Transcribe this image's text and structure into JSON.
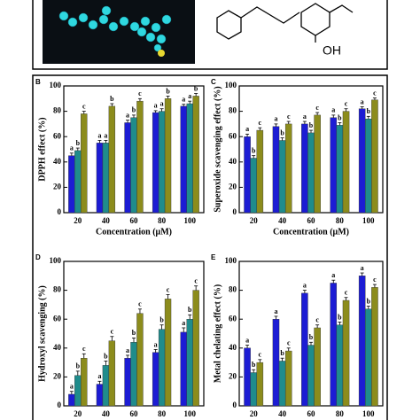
{
  "molecule_label": "OH",
  "chart_data": [
    {
      "type": "bar",
      "panel": "B",
      "y_label": "DPPH effect (%)",
      "x_label": "Concentration (μM)",
      "categories": [
        "20",
        "40",
        "60",
        "80",
        "100"
      ],
      "ylim": [
        0,
        100
      ],
      "yticks": [
        0,
        20,
        40,
        60,
        80,
        100
      ],
      "series": [
        {
          "color": "#1c1cd4",
          "values": [
            45,
            55,
            71,
            79,
            84
          ],
          "errors": [
            2,
            2,
            2,
            1.5,
            1.5
          ],
          "letters": [
            "a",
            "a",
            "a",
            "a",
            "a"
          ]
        },
        {
          "color": "#1f8c8c",
          "values": [
            49,
            55,
            75,
            80,
            86
          ],
          "errors": [
            2,
            2,
            2,
            2,
            2
          ],
          "letters": [
            "b",
            "a",
            "b",
            "a",
            "a"
          ]
        },
        {
          "color": "#8c8c1c",
          "values": [
            78,
            84,
            88,
            90,
            92
          ],
          "errors": [
            2,
            2,
            2,
            2,
            2
          ],
          "letters": [
            "c",
            "b",
            "c",
            "b",
            "b"
          ]
        }
      ]
    },
    {
      "type": "bar",
      "panel": "C",
      "y_label": "Superoxide scavenging effect (%)",
      "x_label": "Concentration (μM)",
      "categories": [
        "20",
        "40",
        "60",
        "80",
        "100"
      ],
      "ylim": [
        0,
        100
      ],
      "yticks": [
        0,
        20,
        40,
        60,
        80,
        100
      ],
      "series": [
        {
          "color": "#1c1cd4",
          "values": [
            60,
            68,
            70,
            75,
            82
          ],
          "errors": [
            2,
            2,
            2,
            2,
            1.5
          ],
          "letters": [
            "a",
            "a",
            "a",
            "a",
            "a"
          ]
        },
        {
          "color": "#1f8c8c",
          "values": [
            43,
            57,
            63,
            69,
            74
          ],
          "errors": [
            2,
            2,
            2,
            2,
            2
          ],
          "letters": [
            "b",
            "b",
            "b",
            "b",
            "b"
          ]
        },
        {
          "color": "#8c8c1c",
          "values": [
            65,
            70,
            77,
            80,
            89
          ],
          "errors": [
            2,
            2,
            2,
            2,
            1.5
          ],
          "letters": [
            "c",
            "c",
            "c",
            "c",
            "c"
          ]
        }
      ]
    },
    {
      "type": "bar",
      "panel": "D",
      "y_label": "Hydroxyl scavenging (%)",
      "categories": [
        "20",
        "40",
        "60",
        "80",
        "100"
      ],
      "ylim": [
        0,
        100
      ],
      "yticks": [
        0,
        20,
        40,
        60,
        80,
        100
      ],
      "series": [
        {
          "color": "#1c1cd4",
          "values": [
            8,
            15,
            33,
            37,
            51
          ],
          "errors": [
            2,
            2,
            2,
            2,
            3
          ],
          "letters": [
            "a",
            "a",
            "a",
            "a",
            "a"
          ]
        },
        {
          "color": "#1f8c8c",
          "values": [
            21,
            28,
            44,
            53,
            60
          ],
          "errors": [
            3,
            3,
            3,
            3,
            3
          ],
          "letters": [
            "b",
            "b",
            "b",
            "b",
            "b"
          ]
        },
        {
          "color": "#8c8c1c",
          "values": [
            33,
            45,
            64,
            74,
            80
          ],
          "errors": [
            3,
            3,
            3,
            3,
            3
          ],
          "letters": [
            "c",
            "c",
            "c",
            "c",
            "c"
          ]
        }
      ]
    },
    {
      "type": "bar",
      "panel": "E",
      "y_label": "Metal chelating effect (%)",
      "categories": [
        "20",
        "40",
        "60",
        "80",
        "100"
      ],
      "ylim": [
        0,
        100
      ],
      "yticks": [
        0,
        20,
        40,
        60,
        80,
        100
      ],
      "series": [
        {
          "color": "#1c1cd4",
          "values": [
            40,
            60,
            78,
            85,
            90
          ],
          "errors": [
            2,
            2,
            2,
            2,
            2
          ],
          "letters": [
            "a",
            "a",
            "a",
            "a",
            "a"
          ]
        },
        {
          "color": "#1f8c8c",
          "values": [
            23,
            31,
            42,
            56,
            67
          ],
          "errors": [
            2,
            2,
            2,
            2,
            2
          ],
          "letters": [
            "b",
            "b",
            "b",
            "b",
            "b"
          ]
        },
        {
          "color": "#8c8c1c",
          "values": [
            30,
            38,
            54,
            73,
            82
          ],
          "errors": [
            2,
            2,
            2,
            2,
            2
          ],
          "letters": [
            "c",
            "c",
            "c",
            "c",
            "c"
          ]
        }
      ]
    }
  ]
}
